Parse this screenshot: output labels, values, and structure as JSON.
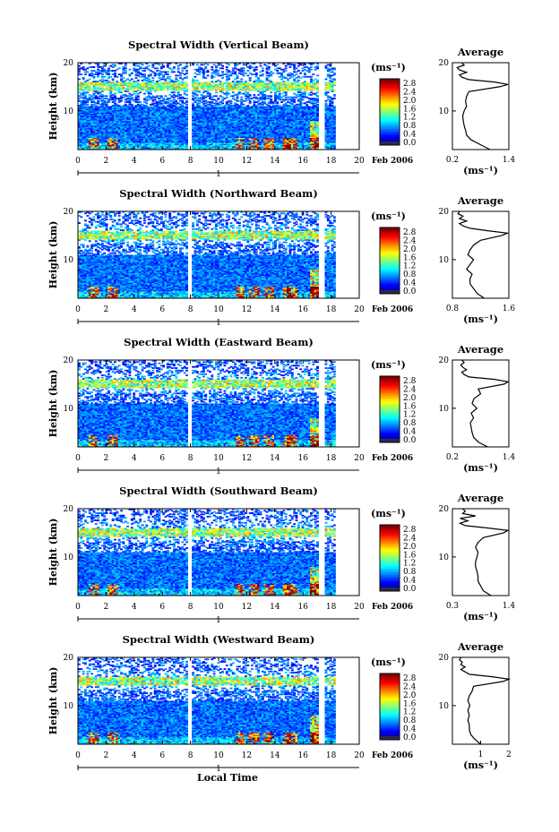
{
  "chart_data": [
    {
      "type": "heatmap",
      "title": "Spectral Width (Vertical Beam)",
      "xlabel": "",
      "ylabel": "Height (km)",
      "xlim": [
        0,
        20
      ],
      "ylim": [
        2,
        20
      ],
      "x_ticks": [
        "0",
        "2",
        "4",
        "6",
        "8",
        "10",
        "12",
        "14",
        "16",
        "18",
        "20"
      ],
      "y_ticks": [
        "10",
        "20"
      ],
      "date_tick": "1",
      "date_label": "Feb 2006",
      "colorbar": {
        "unit": "(ms⁻¹)",
        "ticks": [
          "2.8",
          "2.4",
          "2.0",
          "1.6",
          "1.2",
          "0.8",
          "0.4",
          "0.0"
        ]
      },
      "profile": {
        "title": "Average",
        "xlabel": "(ms⁻¹)",
        "x_ticks": [
          "0.2",
          "1.4"
        ],
        "y_ticks": [
          "10",
          "20"
        ],
        "xlim": [
          0.2,
          1.4
        ],
        "heights": [
          2,
          3,
          4,
          5,
          6,
          7,
          8,
          9,
          10,
          11,
          12,
          13,
          14,
          15,
          15.5,
          16,
          16.5,
          17,
          17.5,
          18,
          18.5,
          19,
          19.5,
          20
        ],
        "values": [
          1.0,
          0.8,
          0.6,
          0.5,
          0.48,
          0.45,
          0.43,
          0.42,
          0.45,
          0.5,
          0.48,
          0.5,
          0.55,
          1.2,
          1.38,
          1.1,
          0.55,
          0.4,
          0.35,
          0.5,
          0.35,
          0.3,
          0.45,
          0.4
        ]
      }
    },
    {
      "type": "heatmap",
      "title": "Spectral Width (Northward Beam)",
      "xlabel": "",
      "ylabel": "Height (km)",
      "xlim": [
        0,
        20
      ],
      "ylim": [
        2,
        20
      ],
      "x_ticks": [
        "0",
        "2",
        "4",
        "6",
        "8",
        "10",
        "12",
        "14",
        "16",
        "18",
        "20"
      ],
      "y_ticks": [
        "10",
        "20"
      ],
      "date_tick": "1",
      "date_label": "Feb 2006",
      "colorbar": {
        "unit": "(ms⁻¹)",
        "ticks": [
          "2.8",
          "2.4",
          "2.0",
          "1.6",
          "1.2",
          "0.8",
          "0.4",
          "0.0"
        ]
      },
      "profile": {
        "title": "Average",
        "xlabel": "(ms⁻¹)",
        "x_ticks": [
          "0.8",
          "1.6"
        ],
        "y_ticks": [
          "10",
          "20"
        ],
        "xlim": [
          0.8,
          1.6
        ],
        "heights": [
          2,
          3,
          4,
          5,
          6,
          7,
          8,
          9,
          10,
          11,
          12,
          13,
          14,
          15,
          15.5,
          16,
          16.5,
          17,
          17.5,
          18,
          18.5,
          19,
          19.5,
          20
        ],
        "values": [
          1.25,
          1.15,
          1.1,
          1.05,
          1.05,
          1.08,
          1.0,
          1.05,
          1.1,
          1.02,
          1.05,
          1.1,
          1.2,
          1.5,
          1.58,
          1.3,
          1.05,
          0.95,
          0.9,
          1.0,
          0.9,
          0.95,
          0.88,
          0.9
        ]
      }
    },
    {
      "type": "heatmap",
      "title": "Spectral Width (Eastward Beam)",
      "xlabel": "",
      "ylabel": "Height (km)",
      "xlim": [
        0,
        20
      ],
      "ylim": [
        2,
        20
      ],
      "x_ticks": [
        "0",
        "2",
        "4",
        "6",
        "8",
        "10",
        "12",
        "14",
        "16",
        "18",
        "20"
      ],
      "y_ticks": [
        "10",
        "20"
      ],
      "date_tick": "1",
      "date_label": "Feb 2006",
      "colorbar": {
        "unit": "(ms⁻¹)",
        "ticks": [
          "2.8",
          "2.4",
          "2.0",
          "1.6",
          "1.2",
          "0.8",
          "0.4",
          "0.0"
        ]
      },
      "profile": {
        "title": "Average",
        "xlabel": "(ms⁻¹)",
        "x_ticks": [
          "0.2",
          "1.4"
        ],
        "y_ticks": [
          "10",
          "20"
        ],
        "xlim": [
          0.2,
          1.4
        ],
        "heights": [
          2,
          3,
          4,
          5,
          6,
          7,
          8,
          9,
          10,
          11,
          12,
          13,
          14,
          15,
          15.5,
          16,
          16.5,
          17,
          17.5,
          18,
          18.5,
          19,
          19.5,
          20
        ],
        "values": [
          0.95,
          0.75,
          0.65,
          0.62,
          0.6,
          0.58,
          0.65,
          0.6,
          0.72,
          0.62,
          0.66,
          0.8,
          0.75,
          1.3,
          1.38,
          1.1,
          0.55,
          0.45,
          0.4,
          0.5,
          0.42,
          0.38,
          0.45,
          0.4
        ]
      }
    },
    {
      "type": "heatmap",
      "title": "Spectral Width (Southward Beam)",
      "xlabel": "",
      "ylabel": "Height (km)",
      "xlim": [
        0,
        20
      ],
      "ylim": [
        2,
        20
      ],
      "x_ticks": [
        "0",
        "2",
        "4",
        "6",
        "8",
        "10",
        "12",
        "14",
        "16",
        "18",
        "20"
      ],
      "y_ticks": [
        "10",
        "20"
      ],
      "date_tick": "1",
      "date_label": "Feb 2006",
      "colorbar": {
        "unit": "(ms⁻¹)",
        "ticks": [
          "2.8",
          "2.4",
          "2.0",
          "1.6",
          "1.2",
          "0.8",
          "0.4",
          "0.0"
        ]
      },
      "profile": {
        "title": "Average",
        "xlabel": "(ms⁻¹)",
        "x_ticks": [
          "0.3",
          "1.4"
        ],
        "y_ticks": [
          "10",
          "20"
        ],
        "xlim": [
          0.3,
          1.4
        ],
        "heights": [
          2,
          3,
          4,
          5,
          6,
          7,
          8,
          9,
          10,
          11,
          12,
          13,
          14,
          15,
          15.5,
          16,
          16.5,
          17,
          17.5,
          18,
          18.5,
          19,
          19.5,
          20
        ],
        "values": [
          1.05,
          0.9,
          0.85,
          0.8,
          0.8,
          0.78,
          0.75,
          0.75,
          0.78,
          0.8,
          0.75,
          0.8,
          0.9,
          1.3,
          1.38,
          1.0,
          0.55,
          0.45,
          0.6,
          0.45,
          0.75,
          0.5,
          0.55,
          0.5
        ]
      }
    },
    {
      "type": "heatmap",
      "title": "Spectral Width (Westward Beam)",
      "xlabel": "Local Time",
      "ylabel": "Height (km)",
      "xlim": [
        0,
        20
      ],
      "ylim": [
        2,
        20
      ],
      "x_ticks": [
        "0",
        "2",
        "4",
        "6",
        "8",
        "10",
        "12",
        "14",
        "16",
        "18",
        "20"
      ],
      "y_ticks": [
        "10",
        "20"
      ],
      "date_tick": "1",
      "date_label": "Feb 2006",
      "colorbar": {
        "unit": "(ms⁻¹)",
        "ticks": [
          "2.8",
          "2.4",
          "2.0",
          "1.6",
          "1.2",
          "0.8",
          "0.4",
          "0.0"
        ]
      },
      "profile": {
        "title": "Average",
        "xlabel": "(ms⁻¹)",
        "x_ticks": [
          "1",
          "2"
        ],
        "y_ticks": [
          "10",
          "20"
        ],
        "xlim": [
          0,
          2
        ],
        "heights": [
          2,
          3,
          4,
          5,
          6,
          7,
          8,
          9,
          10,
          11,
          12,
          13,
          14,
          15,
          15.5,
          16,
          16.5,
          17,
          17.5,
          18,
          18.5,
          19,
          19.5,
          20
        ],
        "values": [
          1.0,
          0.8,
          0.65,
          0.6,
          0.6,
          0.55,
          0.6,
          0.55,
          0.62,
          0.55,
          0.6,
          0.7,
          0.75,
          1.8,
          2.0,
          1.4,
          0.6,
          0.45,
          0.3,
          0.45,
          0.3,
          0.35,
          0.25,
          0.3
        ]
      }
    }
  ]
}
